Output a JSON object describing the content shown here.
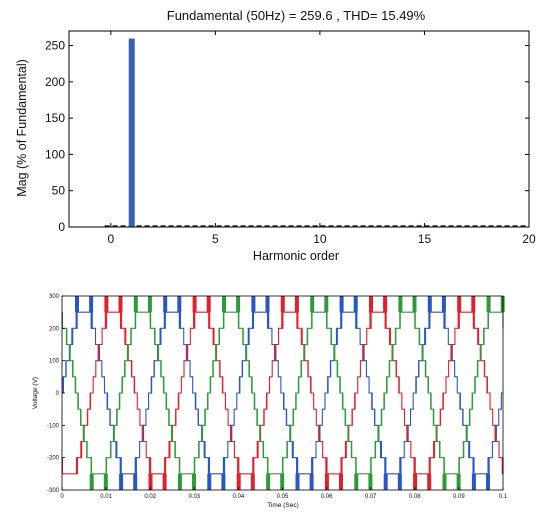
{
  "chart_data": [
    {
      "type": "bar",
      "title": "Fundamental (50Hz) = 259.6 , THD= 15.49%",
      "xlabel": "Harmonic order",
      "ylabel": "Mag (% of Fundamental)",
      "xlim": [
        -2,
        20
      ],
      "ylim": [
        0,
        270
      ],
      "xticks": [
        "0",
        "5",
        "10",
        "15",
        "20"
      ],
      "yticks": [
        "0",
        "50",
        "100",
        "150",
        "200",
        "250"
      ],
      "bar_color": "#3a5fb5",
      "series": [
        {
          "x": [
            0,
            1,
            2,
            3,
            4,
            5,
            6,
            7,
            8,
            9,
            10,
            11,
            12,
            13,
            14,
            15,
            16,
            17,
            18,
            19,
            20
          ],
          "values": [
            0,
            259.6,
            0,
            0,
            0,
            0,
            0,
            0,
            0,
            0,
            0,
            0,
            0,
            0,
            0,
            0,
            0,
            0,
            0,
            0,
            0
          ]
        }
      ]
    },
    {
      "type": "line",
      "xlabel": "Time (Sec)",
      "ylabel": "Voltage (V)",
      "xlim": [
        0,
        0.1
      ],
      "ylim": [
        -300,
        300
      ],
      "xticks": [
        "0",
        "0.01",
        "0.02",
        "0.03",
        "0.04",
        "0.05",
        "0.06",
        "0.07",
        "0.08",
        "0.09",
        "0.1"
      ],
      "yticks": [
        "300",
        "200",
        "100",
        "0",
        "-100",
        "-200",
        "-300"
      ],
      "waveform": {
        "frequency_hz": 50,
        "step_levels_v": [
          0,
          50,
          100,
          150,
          200,
          250
        ],
        "spike_peak_v": 300
      },
      "series": [
        {
          "color": "#2a55c4",
          "phase_deg": 0
        },
        {
          "color": "#e0202a",
          "phase_deg": -120
        },
        {
          "color": "#2e9a3a",
          "phase_deg": 120
        }
      ]
    }
  ]
}
